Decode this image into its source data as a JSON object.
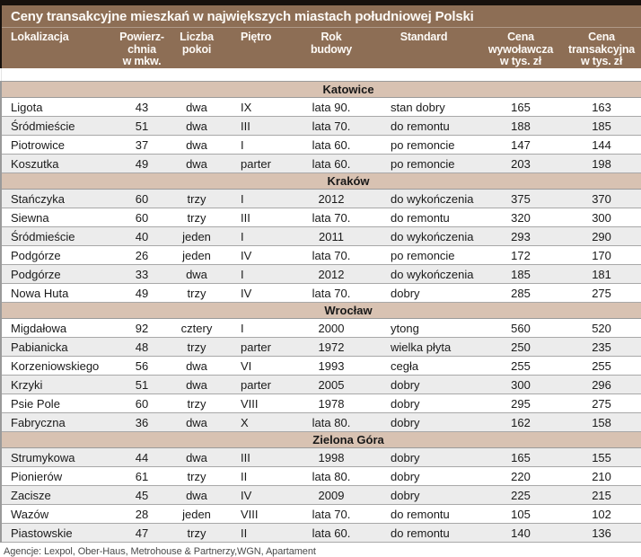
{
  "chart_data": {
    "type": "table",
    "title": "Ceny transakcyjne mieszkań w największych miastach południowej Polski",
    "columns": [
      {
        "key": "lokalizacja",
        "label": "Lokalizacja",
        "lines": [
          "Lokalizacja"
        ]
      },
      {
        "key": "powierzchnia",
        "label": "Powierzchnia w mkw.",
        "lines": [
          "Powierz-",
          "chnia",
          "w mkw."
        ]
      },
      {
        "key": "liczba_pokoi",
        "label": "Liczba pokoi",
        "lines": [
          "Liczba",
          "pokoi"
        ]
      },
      {
        "key": "pietro",
        "label": "Piętro",
        "lines": [
          "Piętro"
        ]
      },
      {
        "key": "rok_budowy",
        "label": "Rok budowy",
        "lines": [
          "Rok",
          "budowy"
        ]
      },
      {
        "key": "standard",
        "label": "Standard",
        "lines": [
          "Standard"
        ]
      },
      {
        "key": "cena_wywolawcza",
        "label": "Cena wywoławcza w tys. zł",
        "lines": [
          "Cena",
          "wywoławcza",
          "w tys. zł"
        ]
      },
      {
        "key": "cena_transakcyjna",
        "label": "Cena transakcyjna w tys. zł",
        "lines": [
          "Cena",
          "transakcyjna",
          "w tys. zł"
        ]
      }
    ],
    "sections": [
      {
        "city": "Katowice",
        "rows": [
          [
            "Ligota",
            "43",
            "dwa",
            "IX",
            "lata 90.",
            "stan dobry",
            "165",
            "163"
          ],
          [
            "Śródmieście",
            "51",
            "dwa",
            "III",
            "lata 70.",
            "do remontu",
            "188",
            "185"
          ],
          [
            "Piotrowice",
            "37",
            "dwa",
            "I",
            "lata 60.",
            "po remoncie",
            "147",
            "144"
          ],
          [
            "Koszutka",
            "49",
            "dwa",
            "parter",
            "lata 60.",
            "po remoncie",
            "203",
            "198"
          ]
        ]
      },
      {
        "city": "Kraków",
        "rows": [
          [
            "Stańczyka",
            "60",
            "trzy",
            "I",
            "2012",
            "do wykończenia",
            "375",
            "370"
          ],
          [
            "Siewna",
            "60",
            "trzy",
            "III",
            "lata 70.",
            "do remontu",
            "320",
            "300"
          ],
          [
            "Śródmieście",
            "40",
            "jeden",
            "I",
            "2011",
            "do wykończenia",
            "293",
            "290"
          ],
          [
            "Podgórze",
            "26",
            "jeden",
            "IV",
            "lata 70.",
            "po remoncie",
            "172",
            "170"
          ],
          [
            "Podgórze",
            "33",
            "dwa",
            "I",
            "2012",
            "do wykończenia",
            "185",
            "181"
          ],
          [
            "Nowa Huta",
            "49",
            "trzy",
            "IV",
            "lata 70.",
            "dobry",
            "285",
            "275"
          ]
        ]
      },
      {
        "city": "Wrocław",
        "rows": [
          [
            "Migdałowa",
            "92",
            "cztery",
            "I",
            "2000",
            "ytong",
            "560",
            "520"
          ],
          [
            "Pabianicka",
            "48",
            "trzy",
            "parter",
            "1972",
            "wielka płyta",
            "250",
            "235"
          ],
          [
            "Korzeniowskiego",
            "56",
            "dwa",
            "VI",
            "1993",
            "cegła",
            "255",
            "255"
          ],
          [
            "Krzyki",
            "51",
            "dwa",
            "parter",
            "2005",
            "dobry",
            "300",
            "296"
          ],
          [
            "Psie Pole",
            "60",
            "trzy",
            "VIII",
            "1978",
            "dobry",
            "295",
            "275"
          ],
          [
            "Fabryczna",
            "36",
            "dwa",
            "X",
            "lata 80.",
            "dobry",
            "162",
            "158"
          ]
        ]
      },
      {
        "city": "Zielona Góra",
        "rows": [
          [
            "Strumykowa",
            "44",
            "dwa",
            "III",
            "1998",
            "dobry",
            "165",
            "155"
          ],
          [
            "Pionierów",
            "61",
            "trzy",
            "II",
            "lata 80.",
            "dobry",
            "220",
            "210"
          ],
          [
            "Zacisze",
            "45",
            "dwa",
            "IV",
            "2009",
            "dobry",
            "225",
            "215"
          ],
          [
            "Wazów",
            "28",
            "jeden",
            "VIII",
            "lata 70.",
            "do remontu",
            "105",
            "102"
          ],
          [
            "Piastowskie",
            "47",
            "trzy",
            "II",
            "lata 60.",
            "do remontu",
            "140",
            "136"
          ]
        ]
      }
    ]
  },
  "footer": "Agencje: Lexpol, Ober-Haus, Metrohouse & Partnerzy,WGN, Apartament",
  "colors": {
    "top_bar": "#17110d",
    "header_brown": "#8d6e55",
    "section_band": "#d8c2b2",
    "row_shade": "#ececec"
  }
}
